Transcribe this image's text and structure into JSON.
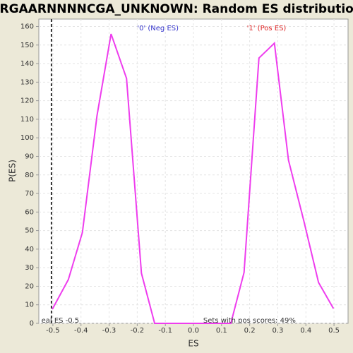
{
  "chart_data": {
    "type": "line",
    "title": "CRGAARNNNNCGA_UNKNOWN: Random ES distribution",
    "x_label": "ES",
    "y_label": "P(ES)",
    "x": [
      -0.502,
      -0.445,
      -0.395,
      -0.343,
      -0.293,
      -0.238,
      -0.185,
      -0.138,
      -0.085,
      -0.033,
      0.02,
      0.075,
      0.133,
      0.18,
      0.233,
      0.288,
      0.338,
      0.393,
      0.445,
      0.498
    ],
    "values": [
      7.6,
      23.6,
      49,
      112,
      156,
      132,
      27,
      0,
      0,
      0,
      0,
      0,
      0,
      27.4,
      143,
      151,
      88,
      55,
      22,
      8
    ],
    "color": "#ee3dee",
    "xlim": [
      -0.55,
      0.55
    ],
    "ylim": [
      0,
      164
    ],
    "xticks": [
      -0.5,
      -0.4,
      -0.3,
      -0.2,
      -0.1,
      {
        "value": 0,
        "label": "0.0"
      },
      0.1,
      0.2,
      0.3,
      0.4,
      0.5
    ],
    "yticks": [
      0,
      10,
      20,
      30,
      40,
      50,
      60,
      70,
      80,
      90,
      100,
      110,
      120,
      130,
      140,
      150,
      160
    ],
    "grid": true,
    "real_es": -0.505,
    "annotations": [
      {
        "text": "'0' (Neg ES)",
        "x": -0.2,
        "y": 159,
        "color": "#3333cc"
      },
      {
        "text": "'1' (Pos ES)",
        "x": 0.19,
        "y": 159,
        "color": "#dd2222"
      },
      {
        "text": "eal ES -0.5",
        "x": -0.541,
        "y": 1.5,
        "color": "#333333"
      },
      {
        "text": "Sets with pos scores: 49%",
        "x": 0.035,
        "y": 1.5,
        "color": "#333333"
      }
    ]
  }
}
